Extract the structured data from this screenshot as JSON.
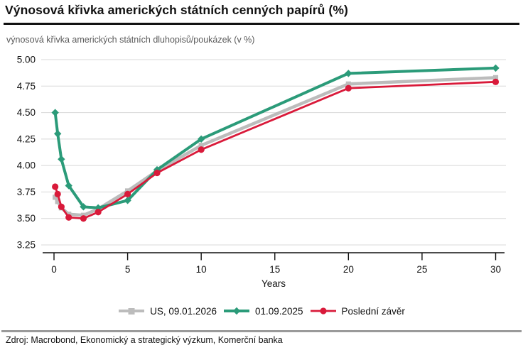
{
  "header": {
    "title": "Výnosová křivka amerických státních cenných papírů (%)"
  },
  "chart_data": {
    "type": "line",
    "title": "výnosová křivka amerických státních dluhopisů/poukázek (v %)",
    "xlabel": "Years",
    "x": [
      0.08,
      0.25,
      0.5,
      1,
      2,
      3,
      5,
      7,
      10,
      20,
      30
    ],
    "xlim": [
      0,
      30
    ],
    "ylim": [
      3.25,
      5.0
    ],
    "xticks": [
      0,
      5,
      10,
      15,
      20,
      25,
      30
    ],
    "yticks": [
      5.0,
      4.75,
      4.5,
      4.25,
      4.0,
      3.75,
      3.5,
      3.25
    ],
    "grid": true,
    "legend_position": "bottom",
    "series": [
      {
        "name": "US, 09.01.2026",
        "color": "#bcbcbc",
        "marker": "square",
        "line_width": 4.5,
        "values": [
          3.7,
          3.66,
          3.6,
          3.54,
          3.53,
          3.59,
          3.76,
          3.95,
          4.19,
          4.77,
          4.83
        ]
      },
      {
        "name": "01.09.2025",
        "color": "#2b9b79",
        "marker": "diamond",
        "line_width": 4,
        "values": [
          4.5,
          4.3,
          4.06,
          3.81,
          3.61,
          3.6,
          3.67,
          3.96,
          4.25,
          4.87,
          4.92
        ]
      },
      {
        "name": "Poslední závěr",
        "color": "#d91a3a",
        "marker": "circle",
        "line_width": 2.8,
        "values": [
          3.8,
          3.73,
          3.61,
          3.51,
          3.5,
          3.56,
          3.73,
          3.93,
          4.15,
          4.73,
          4.79
        ]
      }
    ]
  },
  "footer": {
    "source": "Zdroj: Macrobond, Ekonomický a strategický výzkum, Komerční banka"
  }
}
